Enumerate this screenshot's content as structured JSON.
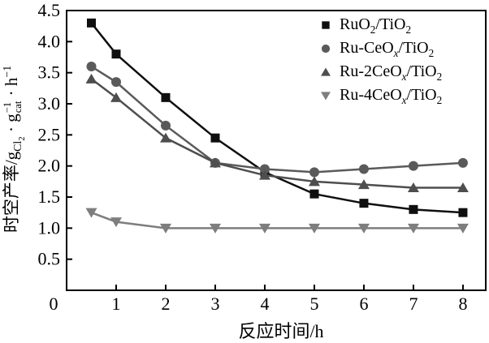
{
  "figure": {
    "background": "#ffffff",
    "text_color": "#000000"
  },
  "chart_data": {
    "type": "line",
    "title": "",
    "xlabel": "反应时间/h",
    "ylabel": "时空产率/g_Cl~2~_ · g{−1|cat} · h^−1^",
    "x": [
      0.5,
      1,
      2,
      3,
      4,
      5,
      6,
      7,
      8
    ],
    "series": [
      {
        "name": "RuO_2_/TiO_2_",
        "marker": "square",
        "color": "#0f0f0f",
        "values": [
          4.3,
          3.8,
          3.1,
          2.45,
          1.9,
          1.55,
          1.4,
          1.3,
          1.25
        ]
      },
      {
        "name": "Ru-CeO_*x*_/TiO_2_",
        "marker": "circle",
        "color": "#5a5a5a",
        "values": [
          3.6,
          3.35,
          2.65,
          2.05,
          1.95,
          1.9,
          1.95,
          2.0,
          2.05
        ]
      },
      {
        "name": "Ru-2CeO_*x*_/TiO_2_",
        "marker": "triangle-up",
        "color": "#4e4e4e",
        "values": [
          3.4,
          3.1,
          2.45,
          2.05,
          1.85,
          1.75,
          1.7,
          1.65,
          1.65
        ]
      },
      {
        "name": "Ru-4CeO_*x*_/TiO_2_",
        "marker": "triangle-down",
        "color": "#7e7e7e",
        "values": [
          1.25,
          1.1,
          1.0,
          1.0,
          1.0,
          1.0,
          1.0,
          1.0,
          1.0
        ]
      }
    ],
    "xlim": [
      0,
      8.46
    ],
    "ylim": [
      0,
      4.5
    ],
    "x_ticks": [
      0,
      1,
      2,
      3,
      4,
      5,
      6,
      7,
      8
    ],
    "x_tick_labels": [
      "0",
      "1",
      "2",
      "3",
      "4",
      "5",
      "6",
      "7",
      "8"
    ],
    "y_ticks": [
      0.5,
      1.0,
      1.5,
      2.0,
      2.5,
      3.0,
      3.5,
      4.0,
      4.5
    ],
    "y_tick_labels": [
      "0.5",
      "1.0",
      "1.5",
      "2.0",
      "2.5",
      "3.0",
      "3.5",
      "4.0",
      "4.5"
    ],
    "grid": false,
    "legend_position": "top-right",
    "axis_color": "#000000"
  }
}
